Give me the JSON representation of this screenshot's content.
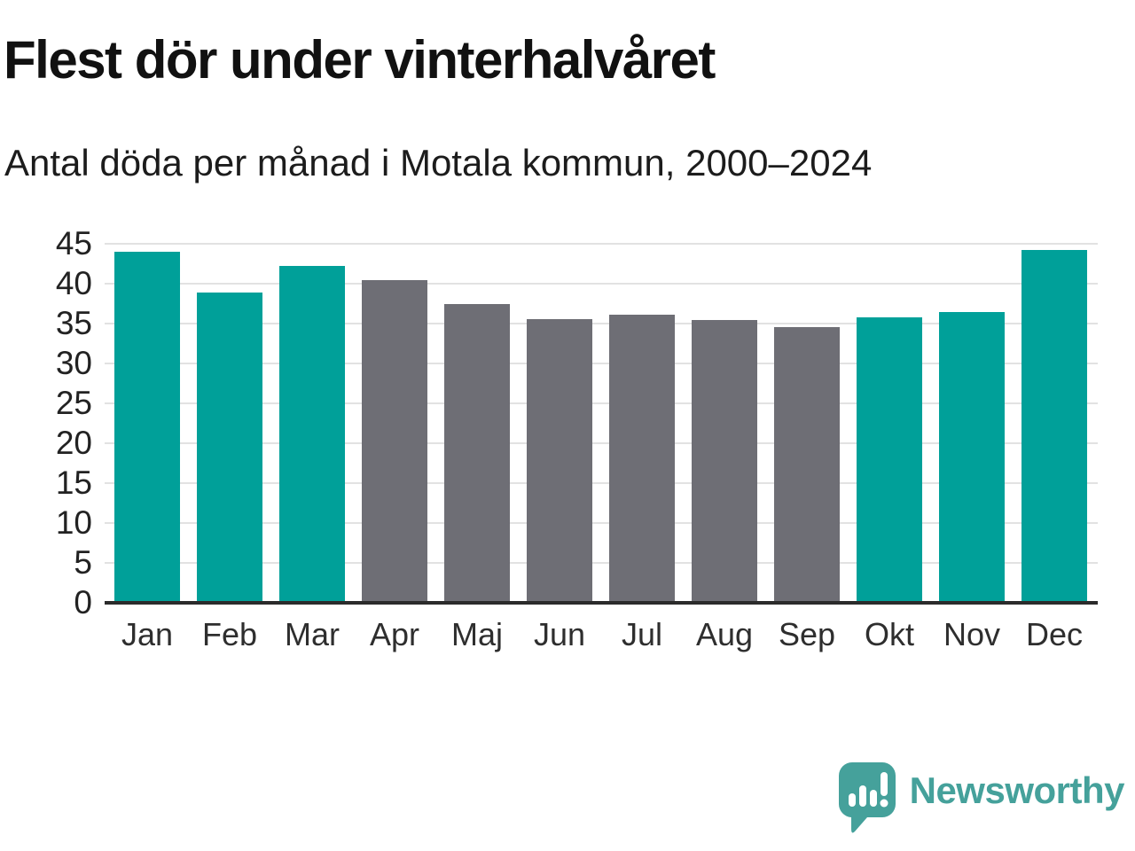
{
  "header": {
    "title": "Flest dör under vinterhalvåret",
    "subtitle": "Antal döda per månad i Motala kommun, 2000–2024"
  },
  "chart_data": {
    "type": "bar",
    "title": "Flest dör under vinterhalvåret",
    "subtitle": "Antal döda per månad i Motala kommun, 2000–2024",
    "categories": [
      "Jan",
      "Feb",
      "Mar",
      "Apr",
      "Maj",
      "Jun",
      "Jul",
      "Aug",
      "Sep",
      "Okt",
      "Nov",
      "Dec"
    ],
    "values": [
      44.0,
      38.9,
      42.2,
      40.4,
      37.5,
      35.6,
      36.1,
      35.5,
      34.6,
      35.8,
      36.5,
      44.2
    ],
    "bar_color_keys": [
      "teal",
      "teal",
      "teal",
      "gray",
      "gray",
      "gray",
      "gray",
      "gray",
      "gray",
      "teal",
      "teal",
      "teal"
    ],
    "xlabel": "",
    "ylabel": "",
    "ylim": [
      0,
      45
    ],
    "yticks": [
      0,
      5,
      10,
      15,
      20,
      25,
      30,
      35,
      40,
      45
    ],
    "grid": true,
    "legend_position": "none"
  },
  "colors": {
    "teal": "#00a099",
    "gray": "#6e6e75",
    "axis": "#2b2b2b",
    "gridline": "#e2e2e2",
    "tick_label": "#222222",
    "logo": "#45a19b"
  },
  "footer": {
    "brand": "Newsworthy",
    "logo_icon": "speech-bubble-bar-chart-icon"
  }
}
